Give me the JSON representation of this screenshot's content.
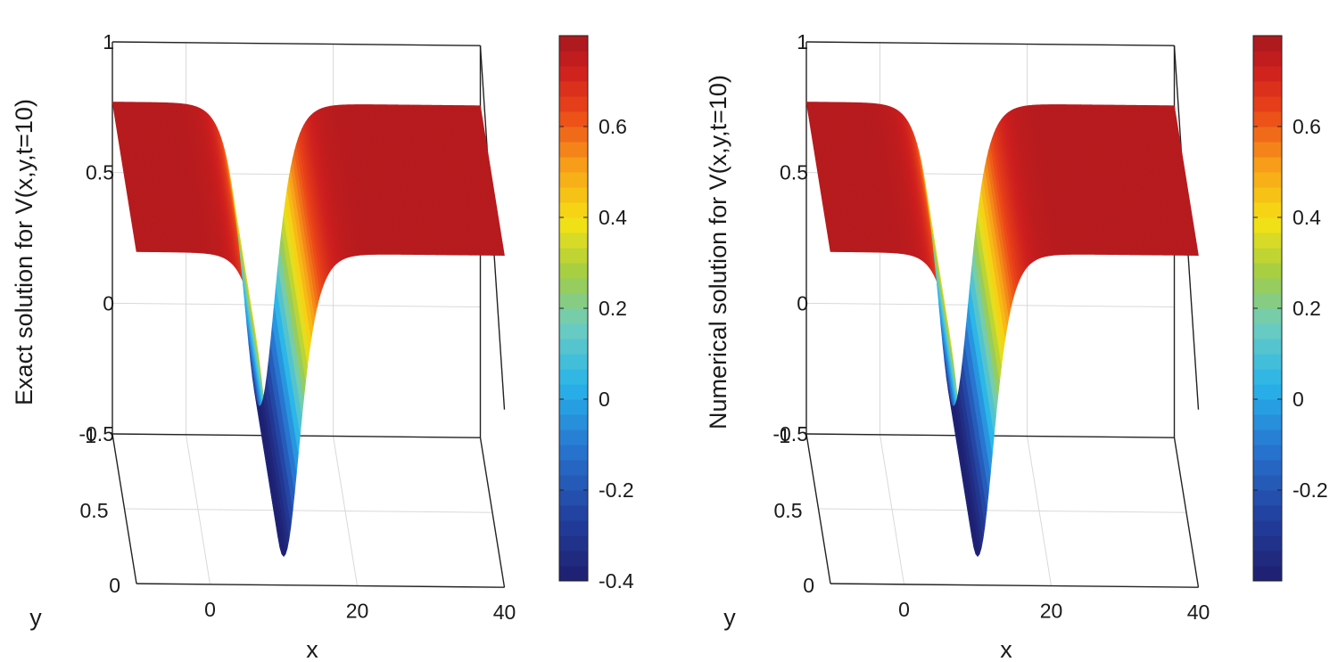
{
  "chart_data": [
    {
      "type": "surface",
      "zlabel": "Exact solution for V(x,y,t=10)",
      "xlabel": "x",
      "ylabel": "y",
      "x_ticks": [
        "0",
        "20",
        "40"
      ],
      "y_ticks": [
        "0",
        "0.5",
        "1"
      ],
      "z_ticks": [
        "-0.5",
        "0",
        "0.5",
        "1"
      ],
      "xlim": [
        -10,
        40
      ],
      "ylim": [
        0,
        1
      ],
      "zlim": [
        -0.5,
        1
      ],
      "colorbar_ticks": [
        "-0.4",
        "-0.2",
        "0",
        "0.2",
        "0.4",
        "0.6"
      ],
      "colorbar_range": [
        -0.4,
        0.8
      ],
      "colormap": "jet",
      "surface": {
        "plateau": 0.77,
        "minimum": -0.39,
        "trough_x": 10,
        "trough_width": 3
      }
    },
    {
      "type": "surface",
      "zlabel": "Numerical solution for V(x,y,t=10)",
      "xlabel": "x",
      "ylabel": "y",
      "x_ticks": [
        "0",
        "20",
        "40"
      ],
      "y_ticks": [
        "0",
        "0.5",
        "1"
      ],
      "z_ticks": [
        "-0.5",
        "0",
        "0.5",
        "1"
      ],
      "xlim": [
        -10,
        40
      ],
      "ylim": [
        0,
        1
      ],
      "zlim": [
        -0.5,
        1
      ],
      "colorbar_ticks": [
        "-0.2",
        "0",
        "0.2",
        "0.4",
        "0.6"
      ],
      "colorbar_range": [
        -0.4,
        0.8
      ],
      "colormap": "jet",
      "surface": {
        "plateau": 0.77,
        "minimum": -0.39,
        "trough_x": 10,
        "trough_width": 3
      }
    }
  ]
}
